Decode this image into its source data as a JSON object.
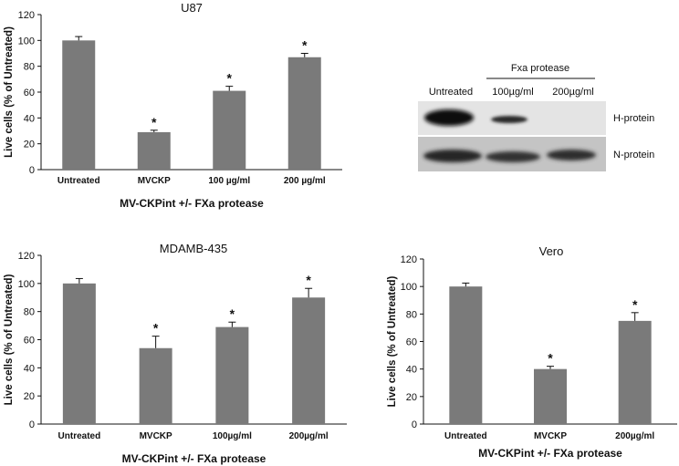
{
  "chart_data": [
    {
      "type": "bar",
      "title": "U87",
      "xlabel": "MV-CKPint +/- FXa protease",
      "ylabel": "Live cells (% of Untreated)",
      "categories": [
        "Untreated",
        "MVCKP",
        "100 µg/ml",
        "200 µg/ml"
      ],
      "values": [
        100,
        29,
        61,
        87
      ],
      "errors": [
        3,
        1.5,
        3.5,
        3
      ],
      "significance": [
        "",
        "*",
        "*",
        "*"
      ],
      "ylim": [
        0,
        120
      ],
      "yticks": [
        0,
        20,
        40,
        60,
        80,
        100,
        120
      ],
      "bar_color": "#7a7a7a"
    },
    {
      "type": "bar",
      "title": "MDAMB-435",
      "xlabel": "MV-CKPint +/- FXa protease",
      "ylabel": "Live cells (% of Untreated)",
      "categories": [
        "Untreated",
        "MVCKP",
        "100µg/ml",
        "200µg/ml"
      ],
      "values": [
        100,
        54,
        69,
        90
      ],
      "errors": [
        3.5,
        8.5,
        3.5,
        6.5
      ],
      "significance": [
        "",
        "*",
        "*",
        "*"
      ],
      "ylim": [
        0,
        120
      ],
      "yticks": [
        0,
        20,
        40,
        60,
        80,
        100,
        120
      ],
      "bar_color": "#7a7a7a"
    },
    {
      "type": "bar",
      "title": "Vero",
      "xlabel": "MV-CKPint +/- FXa protease",
      "ylabel": "Live cells (% of Untreated)",
      "categories": [
        "Untreated",
        "MVCKP",
        "200µg/ml"
      ],
      "values": [
        100,
        40,
        75
      ],
      "errors": [
        2.5,
        2,
        6
      ],
      "significance": [
        "",
        "*",
        "*"
      ],
      "ylim": [
        0,
        120
      ],
      "yticks": [
        0,
        20,
        40,
        60,
        80,
        100,
        120
      ],
      "bar_color": "#7a7a7a"
    }
  ],
  "blot": {
    "group_label": "Fxa protease",
    "lanes": [
      "Untreated",
      "100µg/ml",
      "200µg/ml"
    ],
    "bands": [
      "H-protein",
      "N-protein"
    ]
  }
}
